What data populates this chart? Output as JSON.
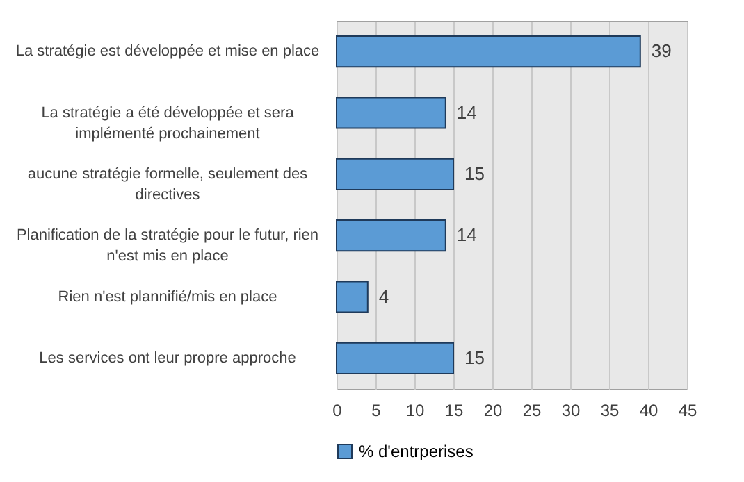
{
  "chart_data": {
    "type": "bar",
    "orientation": "horizontal",
    "categories": [
      "La stratégie est développée et mise en place",
      "La stratégie a été développée et sera\nimplémenté prochainement",
      "aucune stratégie formelle, seulement des\ndirectives",
      "Planification de la stratégie pour le futur, rien\nn'est mis en place",
      "Rien n'est plannifié/mis en place",
      "Les services ont leur propre approche"
    ],
    "series": [
      {
        "name": "% d'entrperises",
        "color": "#5b9bd5",
        "values": [
          39,
          14,
          15,
          14,
          4,
          15
        ]
      }
    ],
    "xlim": [
      0,
      45
    ],
    "xticks": [
      0,
      5,
      10,
      15,
      20,
      25,
      30,
      35,
      40,
      45
    ],
    "grid": "x",
    "legend": "bottom",
    "data_labels": true
  }
}
